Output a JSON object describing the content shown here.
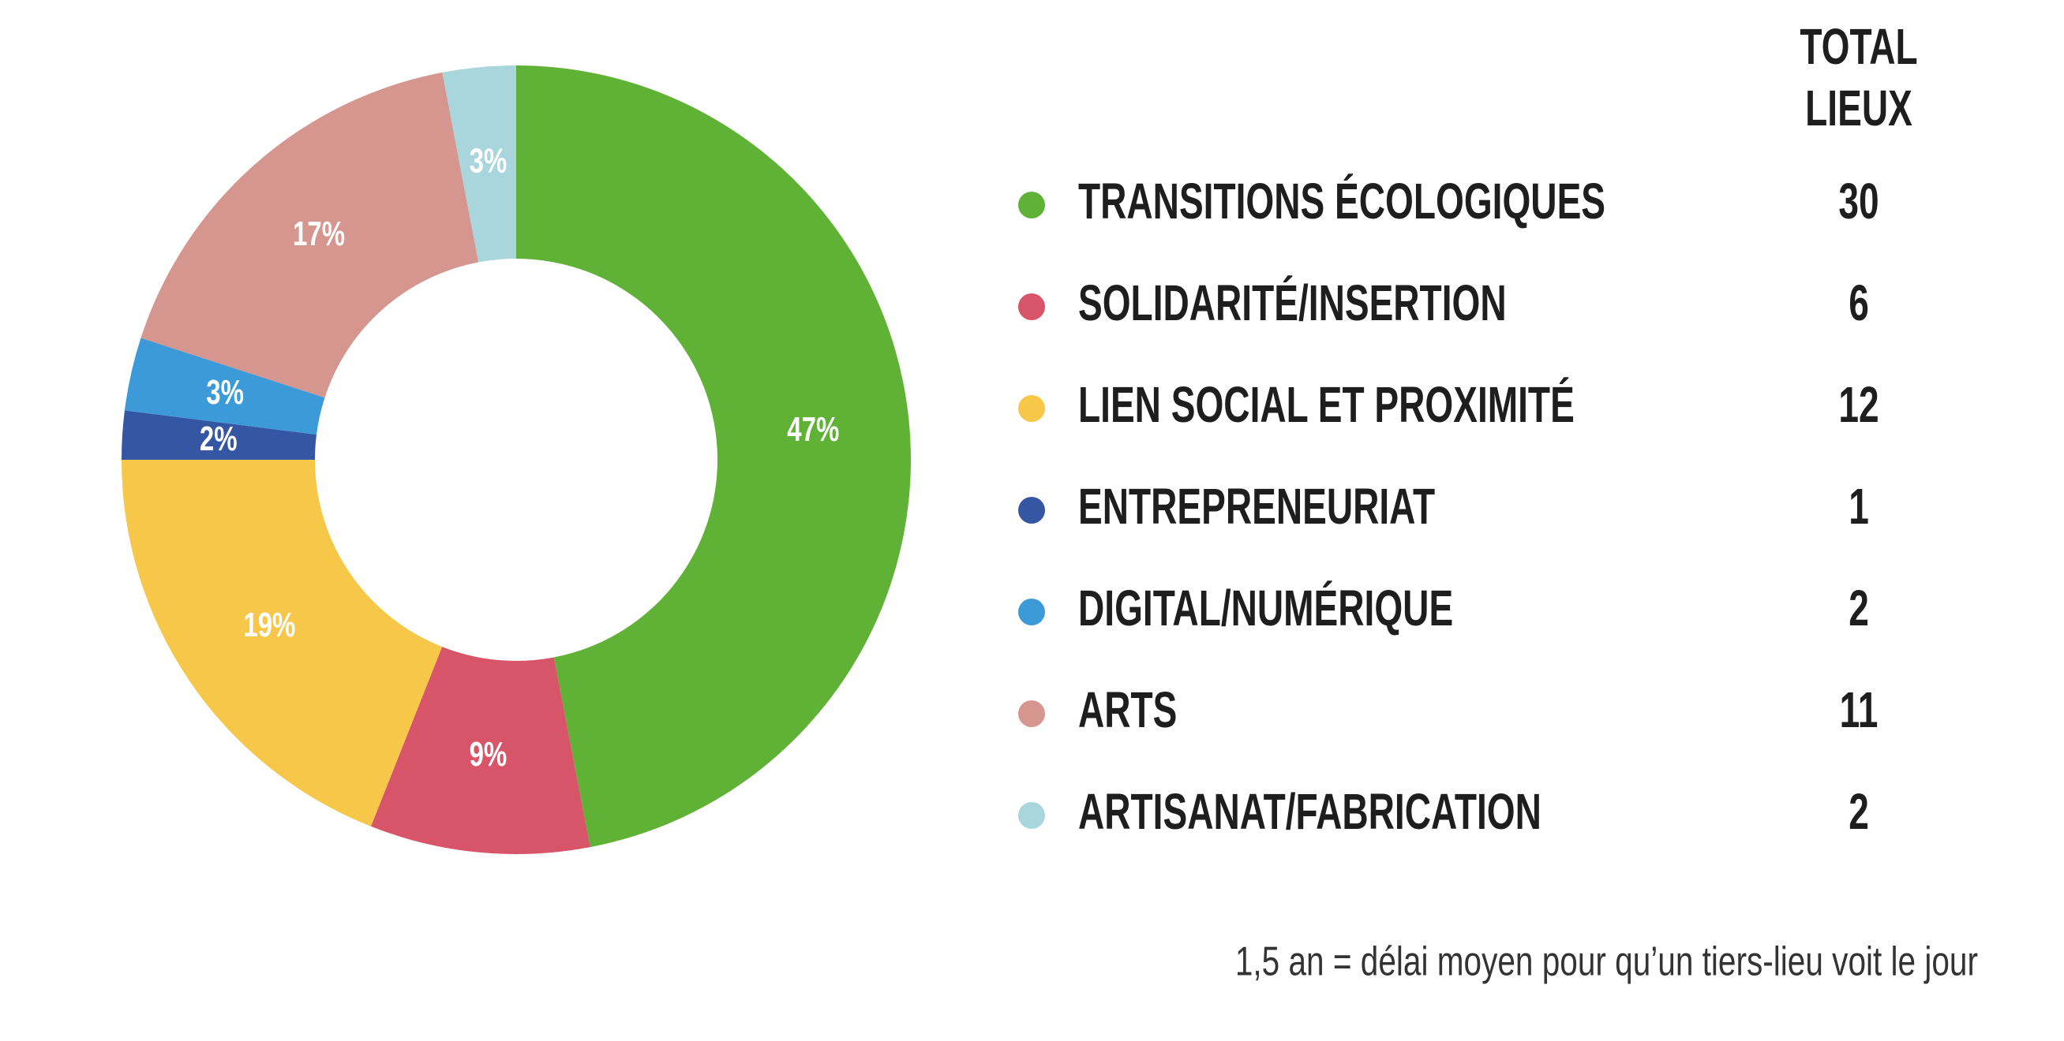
{
  "chart_data": {
    "type": "pie",
    "donut": true,
    "categories": [
      "TRANSITIONS ÉCOLOGIQUES",
      "SOLIDARITÉ/INSERTION",
      "LIEN SOCIAL ET PROXIMITÉ",
      "ENTREPRENEURIAT",
      "DIGITAL/NUMÉRIQUE",
      "ARTS",
      "ARTISANAT/FABRICATION"
    ],
    "values": [
      47,
      9,
      19,
      2,
      3,
      17,
      3
    ],
    "value_labels": [
      "47%",
      "9%",
      "19%",
      "2%",
      "3%",
      "17%",
      "3%"
    ],
    "colors": [
      "#60b236",
      "#d85468",
      "#f6c748",
      "#3556a3",
      "#3c9ad8",
      "#d5968f",
      "#a9d6dc"
    ],
    "totals_header": [
      "TOTAL",
      "LIEUX"
    ],
    "totals": [
      30,
      6,
      12,
      1,
      2,
      11,
      2
    ],
    "note": "1,5 an = délai moyen pour qu’un tiers-lieu voit le jour"
  }
}
